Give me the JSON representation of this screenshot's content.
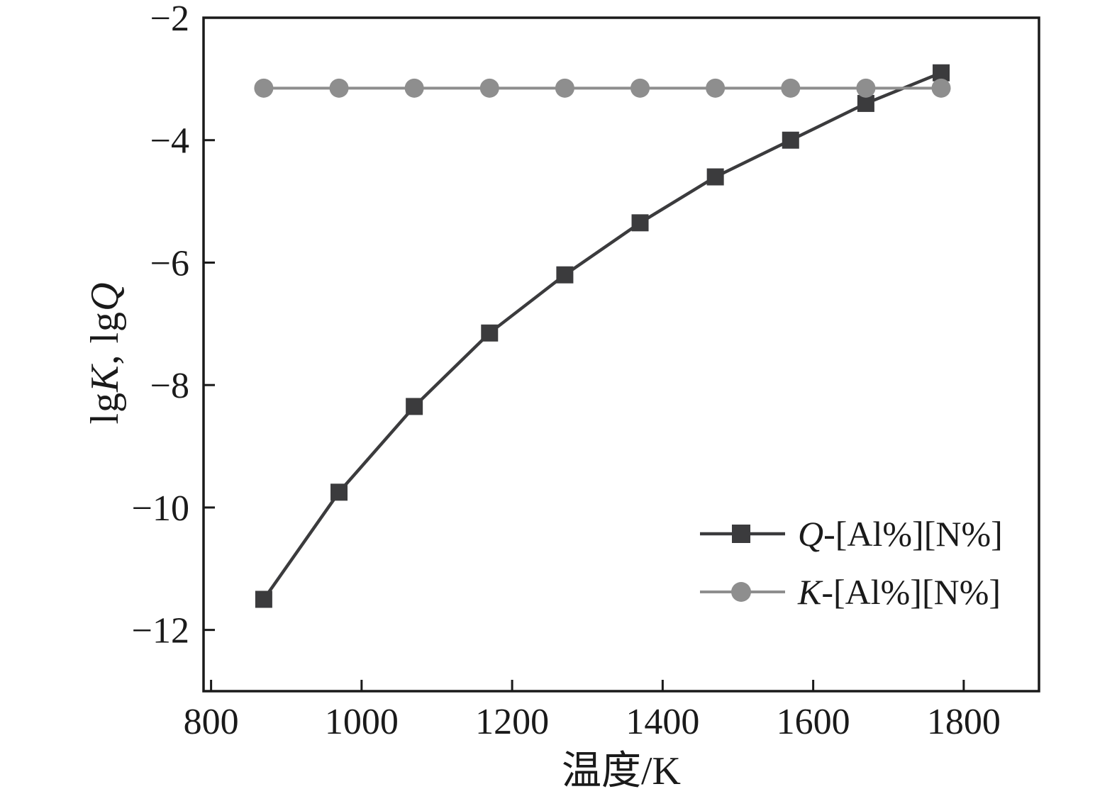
{
  "figure": {
    "background": "#ffffff",
    "frame_color": "#1a1a1a"
  },
  "axes": {
    "xlabel": "温度/K",
    "ylabel_parts": [
      {
        "text": "lg",
        "italic": false
      },
      {
        "text": "K",
        "italic": true
      },
      {
        "text": ", lg",
        "italic": false
      },
      {
        "text": "Q",
        "italic": true
      }
    ],
    "x_ticks": [
      800,
      1000,
      1200,
      1400,
      1600,
      1800
    ],
    "y_ticks": [
      -2,
      -4,
      -6,
      -8,
      -10,
      -12
    ]
  },
  "chart_data": {
    "type": "line",
    "title": "",
    "xlabel": "温度/K",
    "ylabel": "lgK, lgQ",
    "xlim": [
      790,
      1900
    ],
    "ylim": [
      -13,
      -2
    ],
    "grid": false,
    "legend_position": "lower right",
    "x": [
      870,
      970,
      1070,
      1170,
      1270,
      1370,
      1470,
      1570,
      1670,
      1770
    ],
    "series": [
      {
        "name": "Q-[Al%][N%]",
        "marker": "square",
        "color": "#3b3b3d",
        "line_width": 4.5,
        "values": [
          -11.5,
          -9.75,
          -8.35,
          -7.15,
          -6.2,
          -5.35,
          -4.6,
          -4.0,
          -3.4,
          -2.9
        ]
      },
      {
        "name": "K-[Al%][N%]",
        "marker": "circle",
        "color": "#8e8e8e",
        "line_width": 4,
        "values": [
          -3.15,
          -3.15,
          -3.15,
          -3.15,
          -3.15,
          -3.15,
          -3.15,
          -3.15,
          -3.15,
          -3.15
        ]
      }
    ]
  },
  "legend": {
    "entries": [
      {
        "italic": "Q",
        "rest": "-[Al%][N%]",
        "color": "#3b3b3d",
        "marker": "square"
      },
      {
        "italic": "K",
        "rest": "-[Al%][N%]",
        "color": "#8e8e8e",
        "marker": "circle"
      }
    ]
  }
}
